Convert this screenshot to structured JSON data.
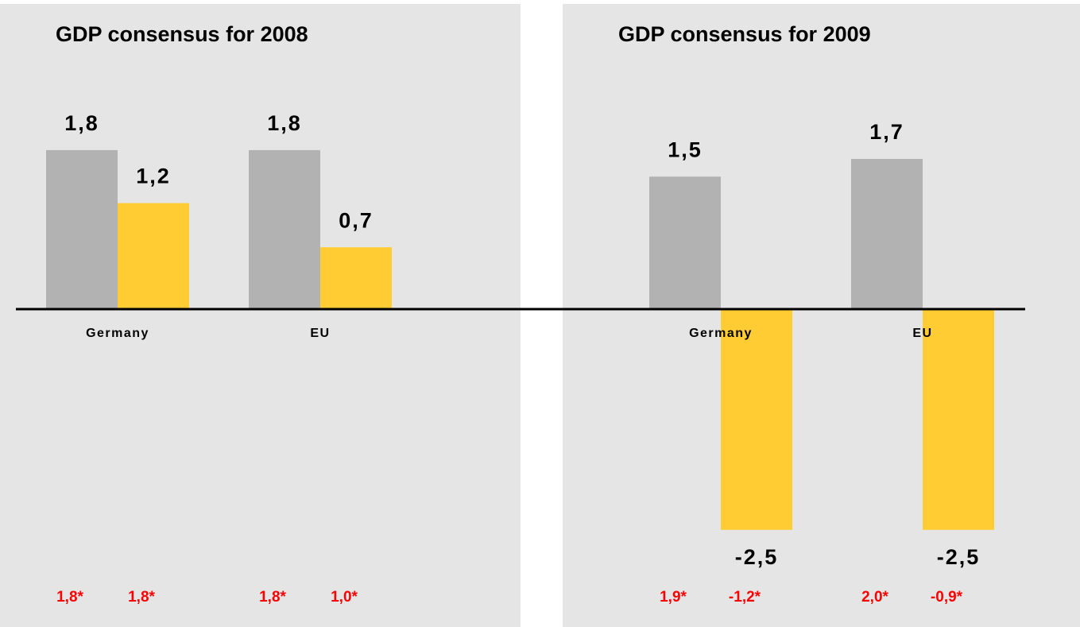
{
  "chart_data": [
    {
      "type": "bar",
      "title": "GDP consensus for 2008",
      "categories": [
        "Germany",
        "EU"
      ],
      "series": [
        {
          "color": "#b2b2b2",
          "values": [
            1.8,
            1.8
          ],
          "value_labels": [
            "1,8",
            "1,8"
          ],
          "notes": [
            "1,8*",
            "1,8*"
          ]
        },
        {
          "color": "#ffcc33",
          "values": [
            1.2,
            0.7
          ],
          "value_labels": [
            "1,2",
            "0,7"
          ],
          "notes": [
            "1,8*",
            "1,0*"
          ]
        }
      ],
      "ylim": [
        -3.6,
        3.5
      ]
    },
    {
      "type": "bar",
      "title": "GDP consensus for 2009",
      "categories": [
        "Germany",
        "EU"
      ],
      "series": [
        {
          "color": "#b2b2b2",
          "values": [
            1.5,
            1.7
          ],
          "value_labels": [
            "1,5",
            "1,7"
          ],
          "notes": [
            "1,9*",
            "2,0*"
          ]
        },
        {
          "color": "#ffcc33",
          "values": [
            -2.5,
            -2.5
          ],
          "value_labels": [
            "-2,5",
            "-2,5"
          ],
          "notes": [
            "-1,2*",
            "-0,9*"
          ]
        }
      ],
      "ylim": [
        -3.6,
        3.5
      ]
    }
  ]
}
